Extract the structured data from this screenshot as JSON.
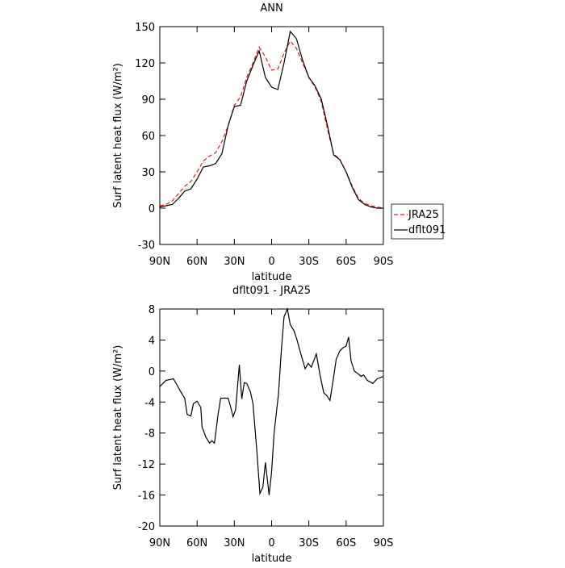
{
  "chart_data": [
    {
      "type": "line",
      "title": "ANN",
      "x_label": "latitude",
      "y_label": "Surf latent heat flux (W/m²)",
      "x": [
        90,
        85,
        80,
        75,
        70,
        65,
        60,
        55,
        50,
        45,
        40,
        35,
        30,
        25,
        20,
        15,
        10,
        5,
        0,
        -5,
        -10,
        -15,
        -20,
        -25,
        -30,
        -35,
        -40,
        -45,
        -50,
        -55,
        -60,
        -65,
        -70,
        -75,
        -80,
        -85,
        -90
      ],
      "series": [
        {
          "name": "JRA25",
          "color": "#e41a1c",
          "line_style": "dashed",
          "values": [
            2,
            3,
            6,
            12,
            18,
            22,
            30,
            39,
            43,
            46,
            55,
            68,
            85,
            92,
            108,
            120,
            133,
            125,
            114,
            115,
            128,
            138,
            132,
            120,
            108,
            100,
            88,
            65,
            45,
            40,
            30,
            18,
            8,
            4,
            2,
            1,
            0
          ]
        },
        {
          "name": "dflt091",
          "color": "#000000",
          "line_style": "solid",
          "values": [
            1,
            2,
            3,
            8,
            14,
            16,
            24,
            34,
            35,
            37,
            45,
            68,
            84,
            85,
            105,
            118,
            130,
            108,
            100,
            98,
            120,
            146,
            140,
            122,
            108,
            101,
            90,
            68,
            44,
            40,
            30,
            17,
            7,
            3,
            1,
            0,
            0
          ]
        }
      ],
      "xlim": [
        90,
        -90
      ],
      "xticks": [
        {
          "value": 90,
          "label": "90N"
        },
        {
          "value": 60,
          "label": "60N"
        },
        {
          "value": 30,
          "label": "30N"
        },
        0,
        {
          "value": -30,
          "label": "30S"
        },
        {
          "value": -60,
          "label": "60S"
        },
        {
          "value": -90,
          "label": "90S"
        }
      ],
      "ylim": [
        -30,
        150
      ],
      "yticks": [
        -30,
        0,
        30,
        60,
        90,
        120,
        150
      ],
      "legend": "right"
    },
    {
      "type": "line",
      "title": "dflt091 - JRA25",
      "x_label": "latitude",
      "y_label": "Surf latent heat flux (W/m²)",
      "x": [
        90,
        85,
        79,
        72,
        70,
        68,
        65,
        63,
        60,
        57,
        56,
        53,
        50,
        48,
        46,
        43,
        41,
        35,
        33,
        31,
        29,
        26,
        24,
        22,
        20,
        17,
        15,
        12,
        9.4,
        7,
        5,
        2,
        0,
        -2,
        -5.5,
        -8,
        -10,
        -12.7,
        -15,
        -18,
        -20.5,
        -23,
        -27,
        -29.5,
        -32,
        -36,
        -39,
        -42,
        -44.5,
        -47,
        -49.7,
        -52,
        -55,
        -57.5,
        -60,
        -62,
        -64,
        -66.6,
        -70,
        -72,
        -74,
        -77,
        -81.5,
        -85,
        -90
      ],
      "series": [
        {
          "name": "dflt091 - JRA25",
          "color": "#000000",
          "line_style": "solid",
          "values": [
            -2,
            -1.2,
            -1,
            -3,
            -3.5,
            -5.6,
            -5.8,
            -4.2,
            -3.9,
            -4.7,
            -7.2,
            -8.5,
            -9.3,
            -9,
            -9.3,
            -5.5,
            -3.5,
            -3.5,
            -4.6,
            -5.9,
            -5,
            0.8,
            -3.6,
            -1.5,
            -1.6,
            -2.7,
            -4.2,
            -10,
            -15.8,
            -15,
            -11.8,
            -16,
            -13,
            -8,
            -3,
            3,
            7,
            8,
            6,
            5.2,
            4,
            2.5,
            0.3,
            1,
            0.5,
            2.2,
            -0.5,
            -2.8,
            -3.2,
            -3.8,
            -1,
            1.5,
            2.6,
            3,
            3.2,
            4.4,
            1.3,
            0,
            -0.4,
            -0.7,
            -0.5,
            -1.2,
            -1.6,
            -1,
            -0.7
          ]
        }
      ],
      "xlim": [
        90,
        -90
      ],
      "xticks": [
        {
          "value": 90,
          "label": "90N"
        },
        {
          "value": 60,
          "label": "60N"
        },
        {
          "value": 30,
          "label": "30N"
        },
        0,
        {
          "value": -30,
          "label": "30S"
        },
        {
          "value": -60,
          "label": "60S"
        },
        {
          "value": -90,
          "label": "90S"
        }
      ],
      "ylim": [
        -20,
        8
      ],
      "yticks": [
        -20,
        -16,
        -12,
        -8,
        -4,
        0,
        4,
        8
      ]
    }
  ]
}
